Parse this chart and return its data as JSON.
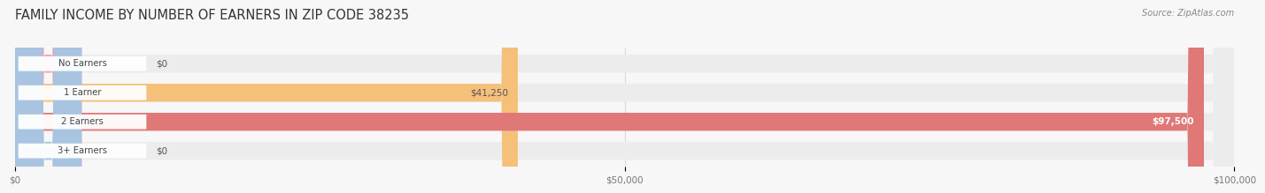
{
  "title": "FAMILY INCOME BY NUMBER OF EARNERS IN ZIP CODE 38235",
  "source": "Source: ZipAtlas.com",
  "categories": [
    "No Earners",
    "1 Earner",
    "2 Earners",
    "3+ Earners"
  ],
  "values": [
    0,
    41250,
    97500,
    0
  ],
  "bar_colors": [
    "#f2a0b8",
    "#f5c07a",
    "#e07878",
    "#a8c4e0"
  ],
  "bar_label_colors": [
    "#555555",
    "#555555",
    "#ffffff",
    "#555555"
  ],
  "xlim": [
    0,
    100000
  ],
  "xticks": [
    0,
    50000,
    100000
  ],
  "xtick_labels": [
    "$0",
    "$50,000",
    "$100,000"
  ],
  "background_color": "#f7f7f7",
  "row_bg_color": "#ececec",
  "title_fontsize": 10.5,
  "bar_height": 0.62,
  "value_labels": [
    "$0",
    "$41,250",
    "$97,500",
    "$0"
  ],
  "pill_color": "#ffffff",
  "pill_text_color": "#444444",
  "grid_color": "#d8d8d8"
}
